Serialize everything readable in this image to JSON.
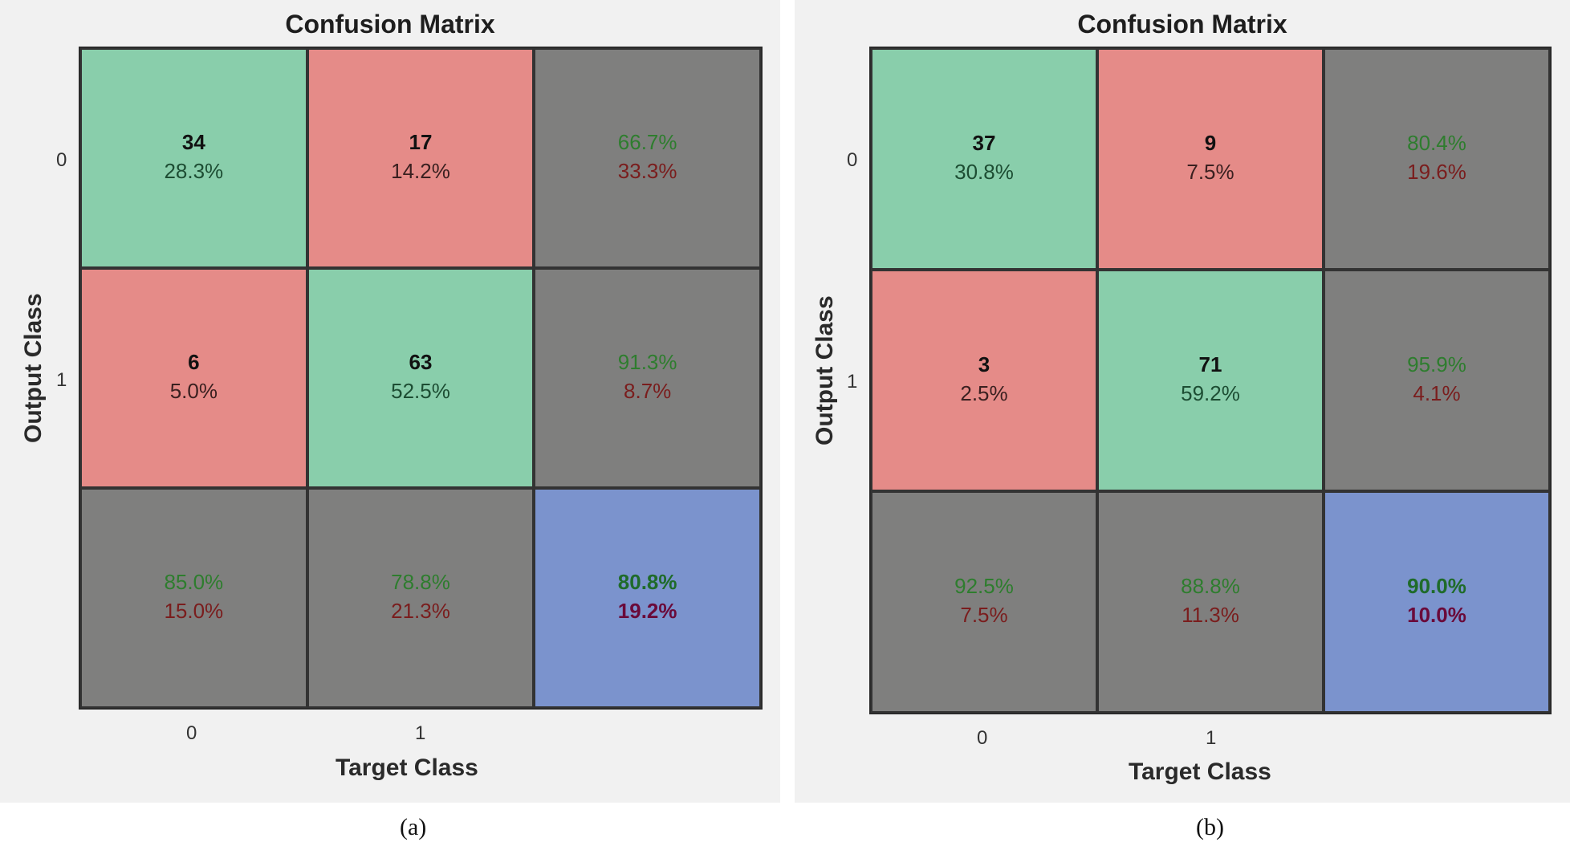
{
  "chart_data": [
    {
      "type": "heatmap",
      "title": "Confusion Matrix",
      "xlabel": "Target Class",
      "ylabel": "Output Class",
      "x_ticks": [
        "0",
        "1"
      ],
      "y_ticks": [
        "0",
        "1"
      ],
      "caption": "(a)",
      "matrix": [
        [
          {
            "count": "34",
            "pct": "28.3%"
          },
          {
            "count": "17",
            "pct": "14.2%"
          },
          {
            "good": "66.7%",
            "bad": "33.3%"
          }
        ],
        [
          {
            "count": "6",
            "pct": "5.0%"
          },
          {
            "count": "63",
            "pct": "52.5%"
          },
          {
            "good": "91.3%",
            "bad": "8.7%"
          }
        ],
        [
          {
            "good": "85.0%",
            "bad": "15.0%"
          },
          {
            "good": "78.8%",
            "bad": "21.3%"
          },
          {
            "good": "80.8%",
            "bad": "19.2%"
          }
        ]
      ]
    },
    {
      "type": "heatmap",
      "title": "Confusion Matrix",
      "xlabel": "Target Class",
      "ylabel": "Output Class",
      "x_ticks": [
        "0",
        "1"
      ],
      "y_ticks": [
        "0",
        "1"
      ],
      "caption": "(b)",
      "matrix": [
        [
          {
            "count": "37",
            "pct": "30.8%"
          },
          {
            "count": "9",
            "pct": "7.5%"
          },
          {
            "good": "80.4%",
            "bad": "19.6%"
          }
        ],
        [
          {
            "count": "3",
            "pct": "2.5%"
          },
          {
            "count": "71",
            "pct": "59.2%"
          },
          {
            "good": "95.9%",
            "bad": "4.1%"
          }
        ],
        [
          {
            "good": "92.5%",
            "bad": "7.5%"
          },
          {
            "good": "88.8%",
            "bad": "11.3%"
          },
          {
            "good": "90.0%",
            "bad": "10.0%"
          }
        ]
      ]
    }
  ],
  "colors": {
    "correct": "#89ceab",
    "incorrect": "#e58b88",
    "summary": "#7f7f7e",
    "total": "#7b93cd"
  }
}
